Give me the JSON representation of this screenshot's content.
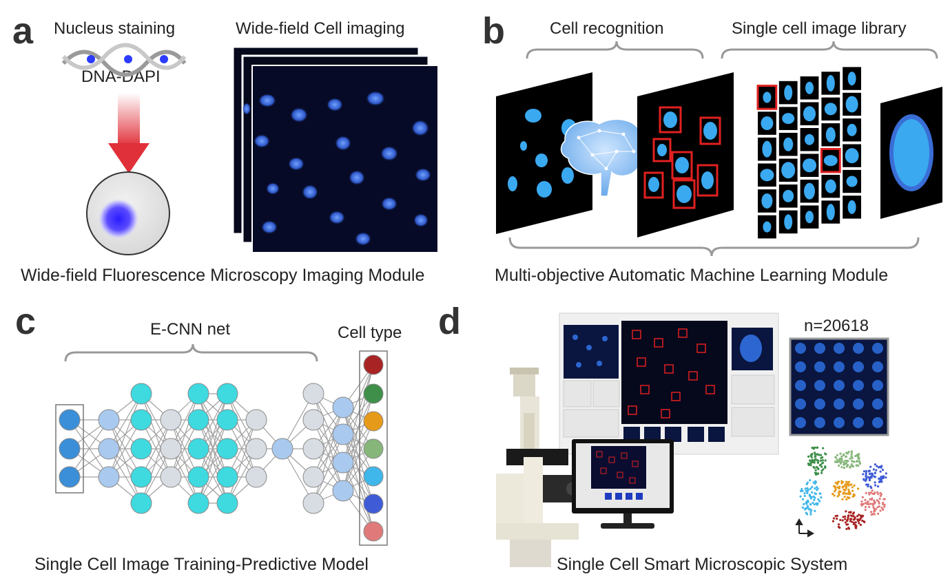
{
  "panels": {
    "a": {
      "letter": "a",
      "nucleus_label": "Nucleus staining",
      "dna_label": "DNA-DAPI",
      "imaging_label": "Wide-field Cell imaging",
      "caption": "Wide-field Fluorescence Microscopy Imaging Module"
    },
    "b": {
      "letter": "b",
      "recognition_label": "Cell recognition",
      "library_label": "Single cell image library",
      "caption": "Multi-objective Automatic Machine Learning Module"
    },
    "c": {
      "letter": "c",
      "net_label": "E-CNN net",
      "celltype_label": "Cell type",
      "caption": "Single Cell Image Training-Predictive Model"
    },
    "d": {
      "letter": "d",
      "count_label": "n=20618",
      "caption": "Single Cell Smart Microscopic System"
    }
  },
  "cell_type_colors": [
    "#a82424",
    "#3f8f4a",
    "#e69a1a",
    "#86b67a",
    "#3fb7ea",
    "#3f5bd6",
    "#e07a7a"
  ],
  "colors": {
    "dapi_blue": "#3aa9f0",
    "detect_red": "#e12020",
    "node_dark": "#3b8fd8",
    "node_light": "#a9c9ee",
    "node_cyan": "#3fd9e0",
    "node_gray": "#d8dde3"
  }
}
